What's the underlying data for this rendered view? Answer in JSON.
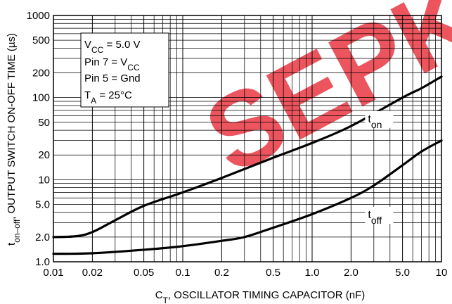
{
  "chart_data": {
    "type": "line",
    "xscale": "log",
    "yscale": "log",
    "xlim": [
      0.01,
      10
    ],
    "ylim": [
      1.0,
      1000
    ],
    "grid": true,
    "xlabel": {
      "main": "C",
      "sub": "T",
      "rest": ", OSCILLATOR TIMING CAPACITOR (nF)"
    },
    "ylabel": {
      "main": "t",
      "sub": "on–off",
      "rest": ", OUTPUT SWITCH ON-OFF TIME (µs)"
    },
    "x_ticks": [
      {
        "value": 0.01,
        "label": "0.01"
      },
      {
        "value": 0.02,
        "label": "0.02"
      },
      {
        "value": 0.05,
        "label": "0.05"
      },
      {
        "value": 0.1,
        "label": "0.1"
      },
      {
        "value": 0.2,
        "label": "0.2"
      },
      {
        "value": 0.5,
        "label": "0.5"
      },
      {
        "value": 1.0,
        "label": "1.0"
      },
      {
        "value": 2.0,
        "label": "2.0"
      },
      {
        "value": 5.0,
        "label": "5.0"
      },
      {
        "value": 10,
        "label": "10"
      }
    ],
    "y_ticks": [
      {
        "value": 1.0,
        "label": "1.0"
      },
      {
        "value": 2.0,
        "label": "2.0"
      },
      {
        "value": 5.0,
        "label": "5.0"
      },
      {
        "value": 10,
        "label": "10"
      },
      {
        "value": 20,
        "label": "20"
      },
      {
        "value": 50,
        "label": "50"
      },
      {
        "value": 100,
        "label": "100"
      },
      {
        "value": 200,
        "label": "200"
      },
      {
        "value": 500,
        "label": "500"
      },
      {
        "value": 1000,
        "label": "1000"
      }
    ],
    "conditions": [
      {
        "main": "V",
        "sub": "CC",
        "rest": " = 5.0 V"
      },
      {
        "main": "Pin 7 = V",
        "sub": "CC",
        "rest": ""
      },
      {
        "main": "Pin 5 = Gnd",
        "sub": "",
        "rest": ""
      },
      {
        "main": "T",
        "sub": "A",
        "rest": " = 25°C"
      }
    ],
    "series": [
      {
        "name": {
          "main": "t",
          "sub": "on"
        },
        "label_at": [
          2.7,
          50
        ],
        "points": [
          [
            0.01,
            2.0
          ],
          [
            0.015,
            2.05
          ],
          [
            0.02,
            2.3
          ],
          [
            0.03,
            3.2
          ],
          [
            0.05,
            4.8
          ],
          [
            0.1,
            7.0
          ],
          [
            0.2,
            10.5
          ],
          [
            0.5,
            18.5
          ],
          [
            1.0,
            28
          ],
          [
            2.0,
            45
          ],
          [
            5.0,
            100
          ],
          [
            7.0,
            130
          ],
          [
            10,
            180
          ]
        ]
      },
      {
        "name": {
          "main": "t",
          "sub": "off"
        },
        "label_at": [
          2.7,
          3.4
        ],
        "points": [
          [
            0.01,
            1.25
          ],
          [
            0.02,
            1.27
          ],
          [
            0.05,
            1.4
          ],
          [
            0.1,
            1.55
          ],
          [
            0.2,
            1.8
          ],
          [
            0.3,
            2.0
          ],
          [
            0.5,
            2.6
          ],
          [
            1.0,
            3.8
          ],
          [
            2.0,
            6.0
          ],
          [
            3.0,
            8.5
          ],
          [
            5.0,
            15
          ],
          [
            7.0,
            22
          ],
          [
            10,
            30
          ]
        ]
      }
    ],
    "watermark": "SEPK"
  }
}
